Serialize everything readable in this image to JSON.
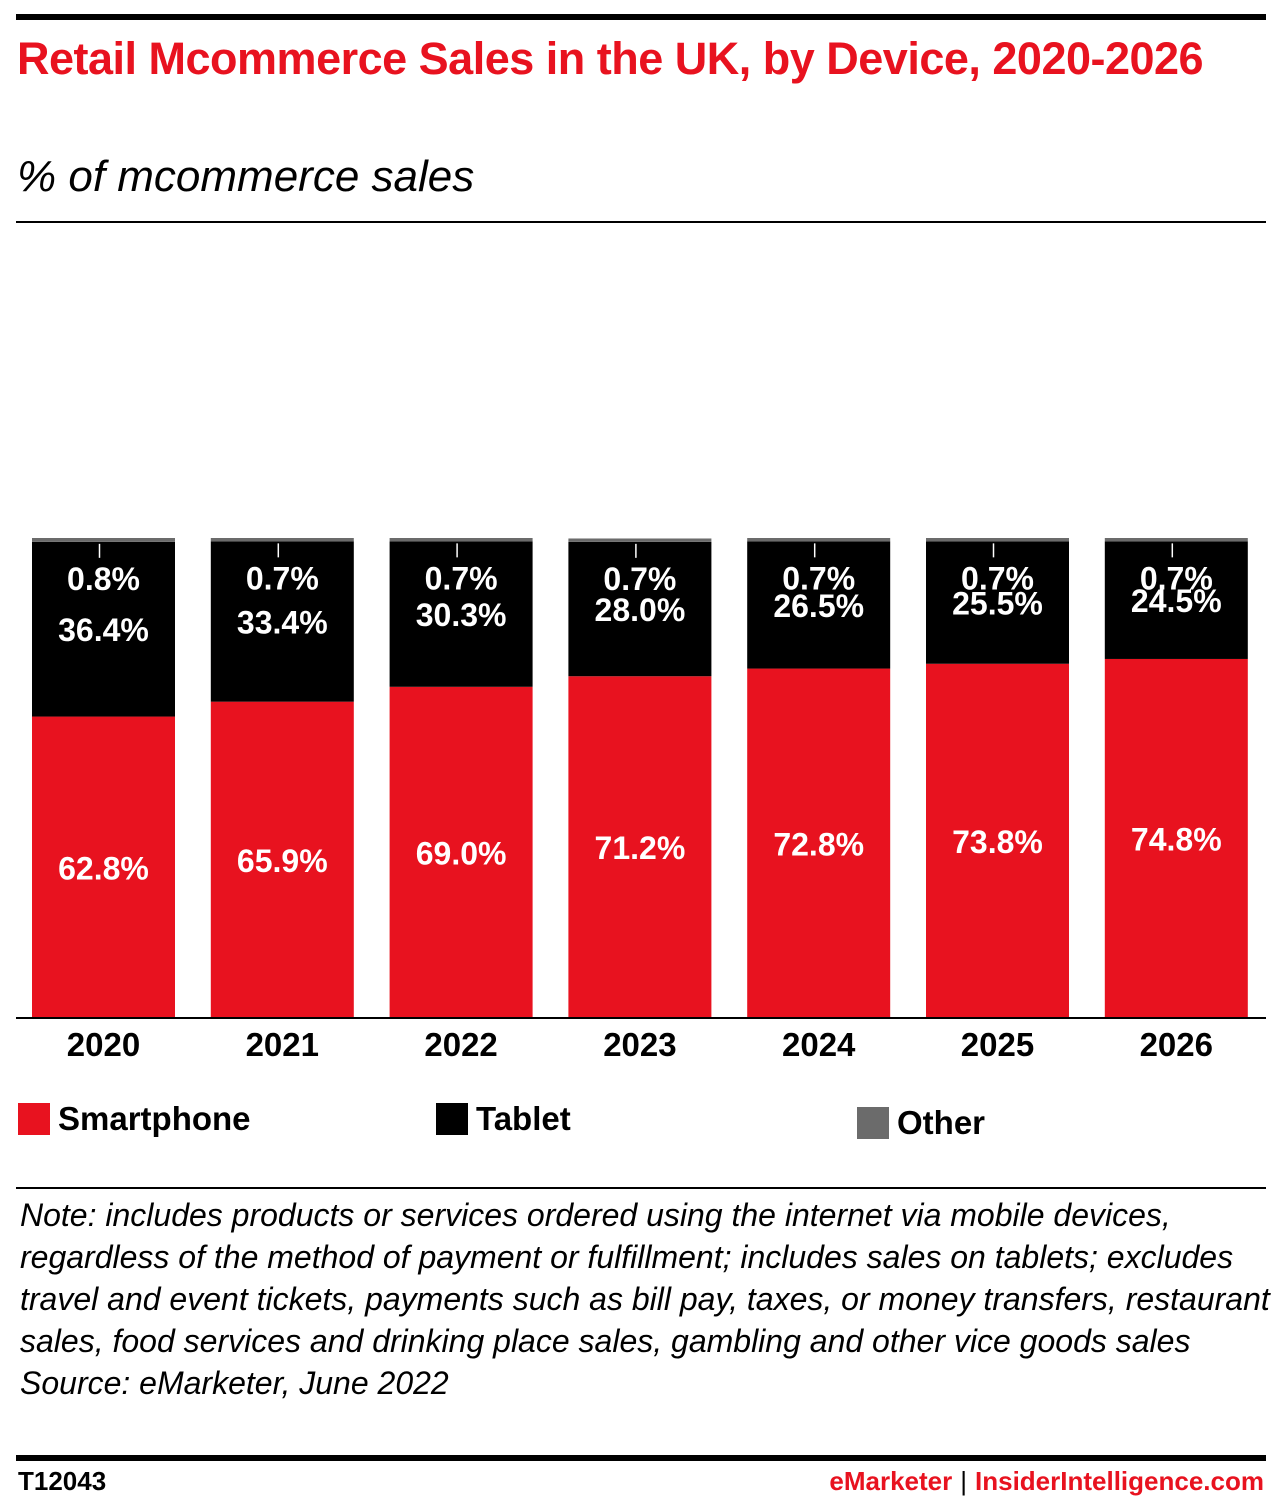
{
  "title": "Retail Mcommerce Sales in the UK, by Device, 2020-2026",
  "subtitle": "% of mcommerce sales",
  "colors": {
    "smartphone": "#e8121f",
    "tablet": "#000000",
    "other": "#6b6b6b",
    "title": "#e8121f"
  },
  "legend": [
    {
      "label": "Smartphone",
      "color": "#e8121f"
    },
    {
      "label": "Tablet",
      "color": "#000000"
    },
    {
      "label": "Other",
      "color": "#6b6b6b"
    }
  ],
  "chart_data": {
    "type": "bar",
    "stacked": true,
    "categories": [
      "2020",
      "2021",
      "2022",
      "2023",
      "2024",
      "2025",
      "2026"
    ],
    "series": [
      {
        "name": "Smartphone",
        "values": [
          62.8,
          65.9,
          69.0,
          71.2,
          72.8,
          73.8,
          74.8
        ],
        "labels": [
          "62.8%",
          "65.9%",
          "69.0%",
          "71.2%",
          "72.8%",
          "73.8%",
          "74.8%"
        ]
      },
      {
        "name": "Tablet",
        "values": [
          36.4,
          33.4,
          30.3,
          28.0,
          26.5,
          25.5,
          24.5
        ],
        "labels": [
          "36.4%",
          "33.4%",
          "30.3%",
          "28.0%",
          "26.5%",
          "25.5%",
          "24.5%"
        ]
      },
      {
        "name": "Other",
        "values": [
          0.8,
          0.7,
          0.7,
          0.7,
          0.7,
          0.7,
          0.7
        ],
        "labels": [
          "0.8%",
          "0.7%",
          "0.7%",
          "0.7%",
          "0.7%",
          "0.7%",
          "0.7%"
        ]
      }
    ],
    "ylim": [
      0,
      100
    ],
    "grid": false,
    "legend_position": "bottom"
  },
  "note": "Note: includes products or services ordered using the internet via mobile devices, regardless of the method of payment or fulfillment; includes sales on tablets; excludes travel and event tickets, payments such as bill pay, taxes, or money transfers, restaurant sales, food services and drinking place sales, gambling and other vice goods sales",
  "source": "Source: eMarketer, June 2022",
  "footer": {
    "id": "T12043",
    "brand1": "eMarketer",
    "separator": "|",
    "brand2": "InsiderIntelligence.com"
  }
}
